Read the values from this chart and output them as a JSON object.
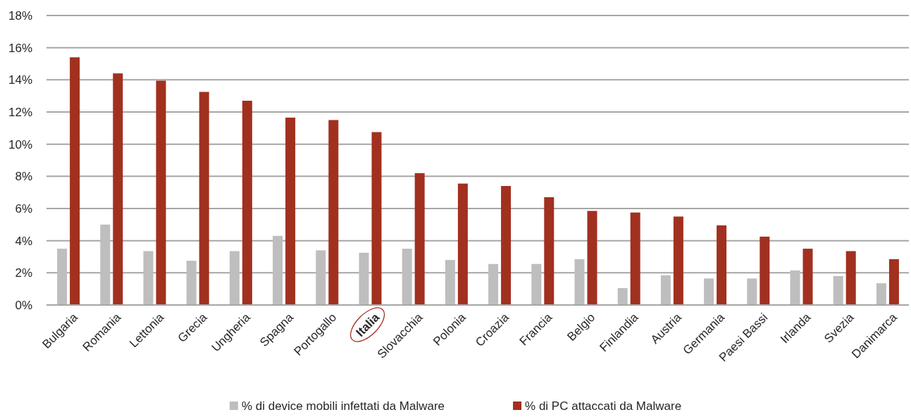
{
  "chart_data": {
    "type": "bar",
    "categories": [
      "Bulgaria",
      "Romania",
      "Lettonia",
      "Grecia",
      "Ungheria",
      "Spagna",
      "Portogallo",
      "Italia",
      "Slovacchia",
      "Polonia",
      "Croazia",
      "Francia",
      "Belgio",
      "Finlandia",
      "Austria",
      "Germania",
      "Paesi Bassi",
      "Irlanda",
      "Svezia",
      "Danimarca"
    ],
    "series": [
      {
        "name": "% di device mobili infettati da Malware",
        "color": "#bebebe",
        "values": [
          3.5,
          5.0,
          3.35,
          2.75,
          3.35,
          4.3,
          3.4,
          3.25,
          3.5,
          2.8,
          2.55,
          2.55,
          2.85,
          1.05,
          1.85,
          1.65,
          1.65,
          2.15,
          1.8,
          1.35
        ]
      },
      {
        "name": "% di PC attaccati da Malware",
        "color": "#a2301f",
        "values": [
          15.4,
          14.4,
          13.95,
          13.25,
          12.7,
          11.65,
          11.5,
          10.75,
          8.2,
          7.55,
          7.4,
          6.7,
          5.85,
          5.75,
          5.5,
          4.95,
          4.25,
          3.5,
          3.35,
          2.85
        ]
      }
    ],
    "ylim": [
      0,
      18
    ],
    "yticks": [
      {
        "value": 0,
        "label": "0%"
      },
      {
        "value": 2,
        "label": "2%"
      },
      {
        "value": 4,
        "label": "4%"
      },
      {
        "value": 6,
        "label": "6%"
      },
      {
        "value": 8,
        "label": "8%"
      },
      {
        "value": 10,
        "label": "10%"
      },
      {
        "value": 12,
        "label": "12%"
      },
      {
        "value": 14,
        "label": "14%"
      },
      {
        "value": 16,
        "label": "16%"
      },
      {
        "value": 18,
        "label": "18%"
      }
    ],
    "grid": "y",
    "legend": "bottom"
  }
}
